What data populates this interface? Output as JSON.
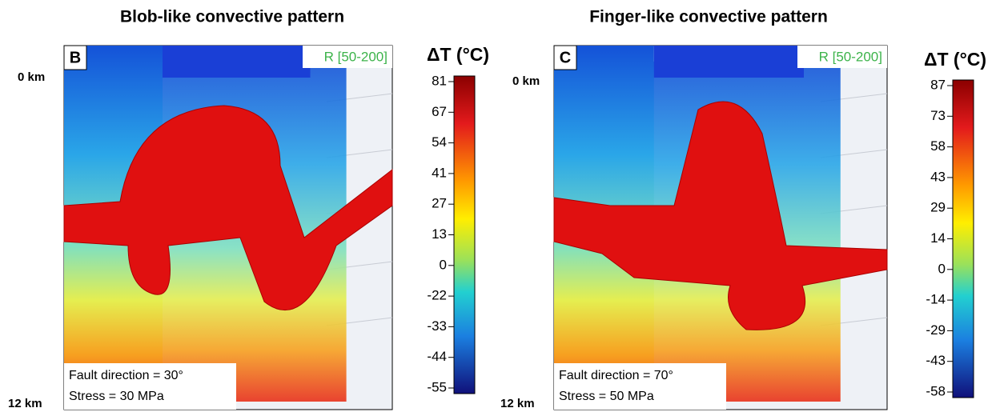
{
  "panels": [
    {
      "title": "Blob-like convective pattern",
      "label": "B",
      "range": "R [50-200]",
      "depth_top": "0 km",
      "depth_bottom": "12 km",
      "fault": "Fault direction = 30°",
      "stress": "Stress = 30 MPa",
      "colorbar": {
        "title": "ΔT (°C)",
        "ticks": [
          81,
          67,
          54,
          41,
          27,
          13,
          0,
          -22,
          -33,
          -44,
          -55
        ]
      }
    },
    {
      "title": "Finger-like convective pattern",
      "label": "C",
      "range": "R [50-200]",
      "depth_top": "0 km",
      "depth_bottom": "12 km",
      "fault": "Fault direction = 70°",
      "stress": "Stress = 50 MPa",
      "colorbar": {
        "title": "ΔT (°C)",
        "ticks": [
          87,
          73,
          58,
          43,
          29,
          14,
          0,
          -14,
          -29,
          -43,
          -58
        ]
      }
    }
  ]
}
